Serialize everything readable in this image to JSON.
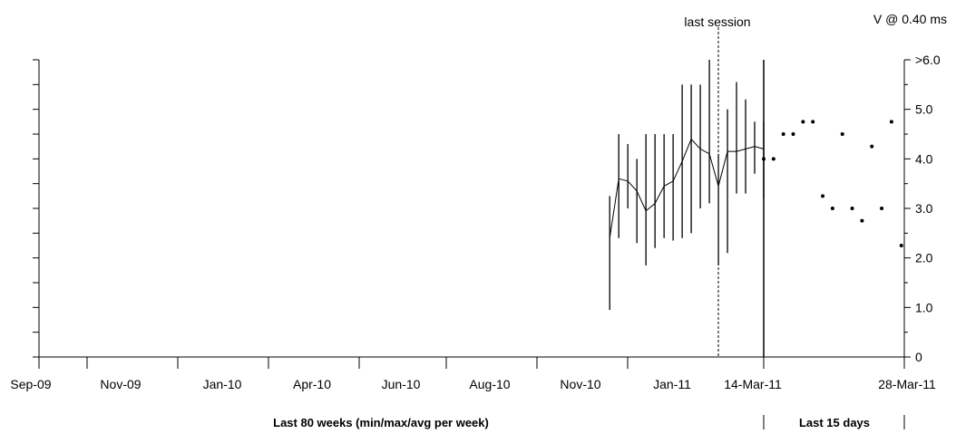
{
  "chart_data": {
    "type": "line",
    "corner_label": "V @ 0.40 ms",
    "marker_label": "last session",
    "marker_date": "Feb-11",
    "y_ticks": [
      "0",
      "1.0",
      "2.0",
      "3.0",
      "4.0",
      "5.0",
      ">6.0"
    ],
    "ylim": [
      0,
      6
    ],
    "x_ticks": [
      "Sep-09",
      "Nov-09",
      "Jan-10",
      "Apr-10",
      "Jun-10",
      "Aug-10",
      "Nov-10",
      "Jan-11",
      "14-Mar-11",
      "28-Mar-11"
    ],
    "weekly_section_label": "Last 80 weeks (min/max/avg per week)",
    "daily_section_label": "Last 15 days",
    "weekly": [
      {
        "week": 64,
        "min": 0.95,
        "max": 3.25,
        "avg": 2.4
      },
      {
        "week": 65,
        "min": 2.4,
        "max": 4.5,
        "avg": 3.6
      },
      {
        "week": 66,
        "min": 3.0,
        "max": 4.3,
        "avg": 3.55
      },
      {
        "week": 67,
        "min": 2.3,
        "max": 4.0,
        "avg": 3.35
      },
      {
        "week": 68,
        "min": 1.85,
        "max": 4.5,
        "avg": 2.95
      },
      {
        "week": 69,
        "min": 2.2,
        "max": 4.5,
        "avg": 3.1
      },
      {
        "week": 70,
        "min": 2.4,
        "max": 4.5,
        "avg": 3.45
      },
      {
        "week": 71,
        "min": 2.35,
        "max": 4.5,
        "avg": 3.55
      },
      {
        "week": 72,
        "min": 2.4,
        "max": 5.5,
        "avg": 3.95
      },
      {
        "week": 73,
        "min": 2.5,
        "max": 5.5,
        "avg": 4.4
      },
      {
        "week": 74,
        "min": 3.0,
        "max": 5.5,
        "avg": 4.2
      },
      {
        "week": 75,
        "min": 3.1,
        "max": 6.0,
        "avg": 4.1
      },
      {
        "week": 76,
        "min": 1.85,
        "max": 4.1,
        "avg": 3.45
      },
      {
        "week": 77,
        "min": 2.1,
        "max": 5.0,
        "avg": 4.15
      },
      {
        "week": 78,
        "min": 3.3,
        "max": 5.55,
        "avg": 4.15
      },
      {
        "week": 79,
        "min": 3.3,
        "max": 5.2,
        "avg": 4.2
      },
      {
        "week": 80,
        "min": 3.7,
        "max": 4.75,
        "avg": 4.25
      },
      {
        "week": 81,
        "min": 3.2,
        "max": 4.75,
        "avg": 4.2
      }
    ],
    "daily": [
      {
        "day": 1,
        "value": 4.0
      },
      {
        "day": 2,
        "value": 4.0
      },
      {
        "day": 3,
        "value": 4.5
      },
      {
        "day": 4,
        "value": 4.5
      },
      {
        "day": 5,
        "value": 4.75
      },
      {
        "day": 6,
        "value": 4.75
      },
      {
        "day": 7,
        "value": 3.25
      },
      {
        "day": 8,
        "value": 3.0
      },
      {
        "day": 9,
        "value": 4.5
      },
      {
        "day": 10,
        "value": 3.0
      },
      {
        "day": 11,
        "value": 2.75
      },
      {
        "day": 12,
        "value": 4.25
      },
      {
        "day": 13,
        "value": 3.0
      },
      {
        "day": 14,
        "value": 4.75
      },
      {
        "day": 15,
        "value": 2.25
      }
    ],
    "color": "#000000",
    "grid": false
  }
}
